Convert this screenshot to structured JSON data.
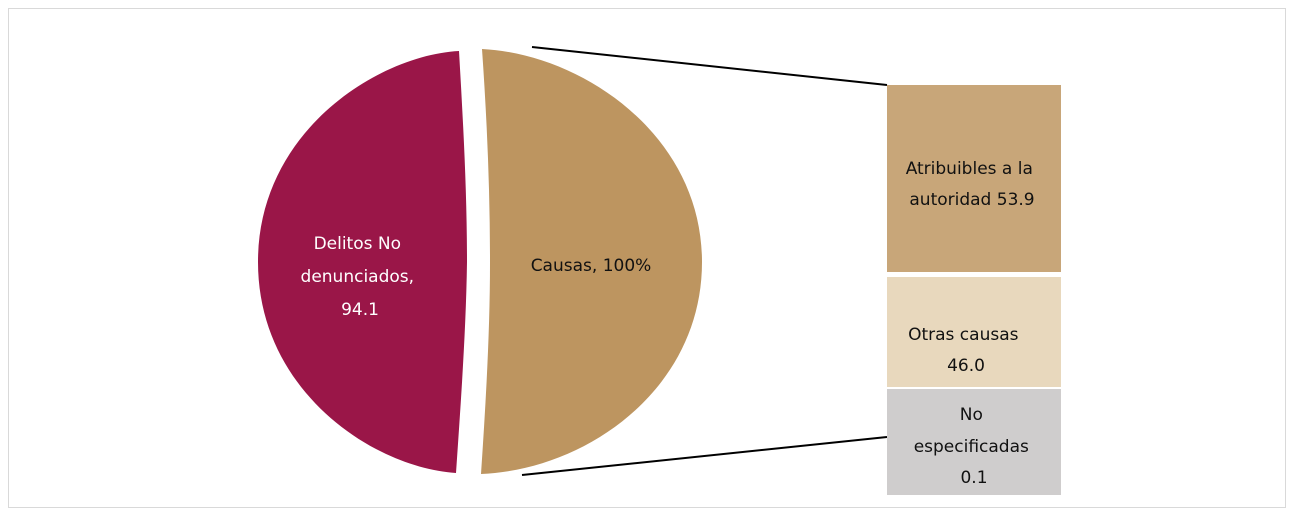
{
  "chart_data": {
    "type": "bar-of-pie",
    "pie": {
      "slices": [
        {
          "label_lines": [
            "Delitos No",
            "denunciados,",
            "94.1"
          ],
          "value": 94.1
        },
        {
          "label_lines": [
            "Causas, 100%"
          ],
          "value": 100
        }
      ]
    },
    "bar": {
      "segments": [
        {
          "label_lines": [
            "Atribuibles a la",
            "autoridad 53.9"
          ],
          "value": 53.9
        },
        {
          "label_lines": [
            "Otras causas",
            "46.0"
          ],
          "value": 46.0
        },
        {
          "label_lines": [
            "No",
            "especificadas",
            "0.1"
          ],
          "value": 0.1
        }
      ]
    }
  },
  "colors": {
    "delitos": "#9a1648",
    "causas": "#bd9560",
    "atribuibles": "#c8a679",
    "otras": "#e8d8bd",
    "no_especificadas": "#cfcdcd",
    "connector": "#000000"
  }
}
